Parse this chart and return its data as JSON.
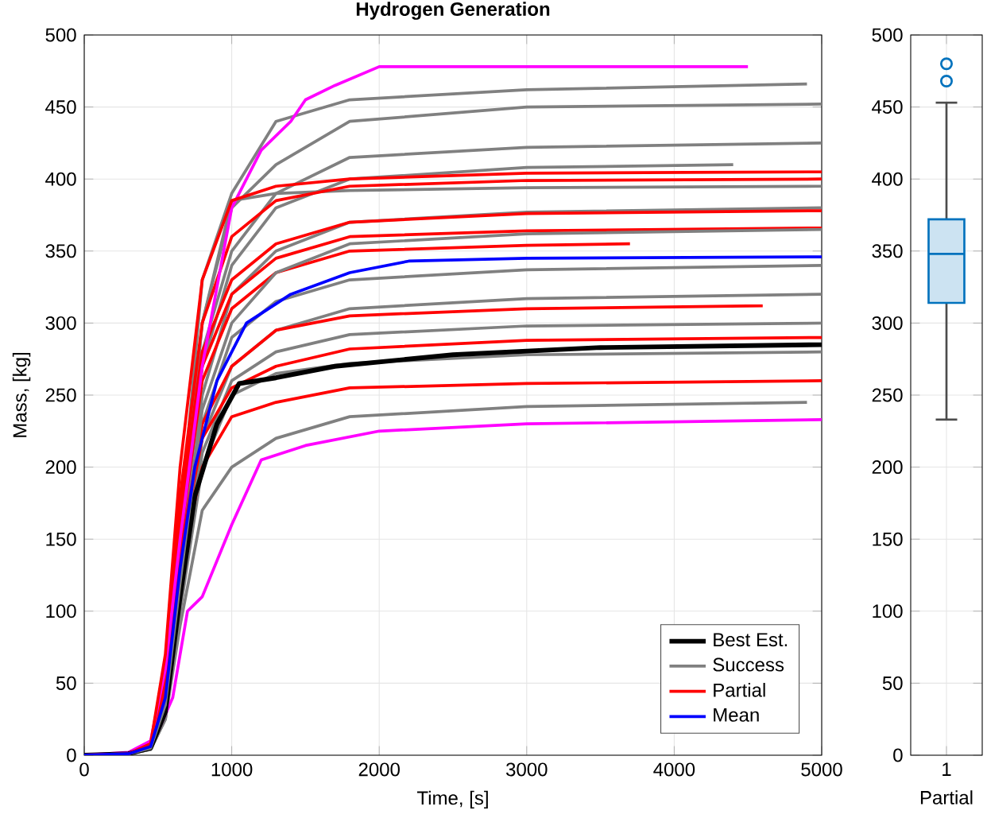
{
  "chart_data": [
    {
      "type": "line",
      "title": "**Hydrogen Generation**",
      "xlabel": "Time, [s]",
      "ylabel": "Mass, [kg]",
      "xlim": [
        0,
        5000
      ],
      "ylim": [
        0,
        500
      ],
      "xticks": [
        0,
        1000,
        2000,
        3000,
        4000,
        5000
      ],
      "yticks": [
        0,
        50,
        100,
        150,
        200,
        250,
        300,
        350,
        400,
        450,
        500
      ],
      "grid": true,
      "legend": "bottom right",
      "marker": "none",
      "line_style": "solid",
      "series": [
        {
          "name": "Best Est.",
          "color": "#000000",
          "x": [
            0,
            300,
            450,
            550,
            650,
            750,
            900,
            1050,
            1300,
            1700,
            2500,
            3500,
            5000
          ],
          "values": [
            0,
            1,
            5,
            30,
            110,
            180,
            230,
            258,
            262,
            270,
            278,
            283,
            285
          ]
        },
        {
          "name": "Success",
          "color": "#808080",
          "x": [
            0,
            300,
            450,
            550,
            650,
            800,
            1000,
            1300,
            1800,
            3000,
            5000
          ],
          "values": [
            0,
            1,
            5,
            35,
            120,
            240,
            300,
            335,
            355,
            362,
            365
          ]
        },
        {
          "name": "Partial",
          "color": "#ff0000",
          "x": [
            0,
            300,
            450,
            550,
            650,
            800,
            1000,
            1300,
            1800,
            3000,
            5000
          ],
          "values": [
            0,
            1,
            8,
            70,
            200,
            330,
            385,
            395,
            400,
            404,
            405
          ]
        },
        {
          "name": "Mean",
          "color": "#0000ff",
          "x": [
            0,
            300,
            450,
            550,
            650,
            750,
            900,
            1100,
            1400,
            1800,
            2200,
            3000,
            5000
          ],
          "values": [
            0,
            1,
            6,
            40,
            130,
            200,
            260,
            300,
            320,
            335,
            343,
            345,
            346
          ]
        },
        {
          "color": "#808080",
          "x": [
            0,
            300,
            450,
            550,
            650,
            800,
            1000,
            1300,
            1800,
            3000,
            4900
          ],
          "values": [
            0,
            1,
            6,
            50,
            160,
            330,
            390,
            440,
            455,
            462,
            466
          ]
        },
        {
          "color": "#808080",
          "x": [
            0,
            300,
            450,
            550,
            650,
            800,
            1000,
            1300,
            1800,
            3000,
            5000
          ],
          "values": [
            0,
            1,
            6,
            45,
            150,
            300,
            380,
            410,
            440,
            450,
            452
          ]
        },
        {
          "color": "#808080",
          "x": [
            0,
            300,
            450,
            550,
            650,
            800,
            1000,
            1300,
            1800,
            3000,
            5000
          ],
          "values": [
            0,
            1,
            5,
            40,
            140,
            280,
            350,
            390,
            415,
            422,
            425
          ]
        },
        {
          "color": "#808080",
          "x": [
            0,
            300,
            450,
            550,
            650,
            800,
            1000,
            1300,
            1800,
            3000,
            4400
          ],
          "values": [
            0,
            1,
            5,
            40,
            130,
            270,
            340,
            380,
            400,
            408,
            410
          ]
        },
        {
          "color": "#808080",
          "x": [
            0,
            300,
            450,
            550,
            650,
            800,
            1000,
            1300,
            1800,
            3000,
            5000
          ],
          "values": [
            0,
            1,
            5,
            45,
            150,
            300,
            385,
            390,
            392,
            394,
            395
          ]
        },
        {
          "color": "#808080",
          "x": [
            0,
            300,
            450,
            550,
            650,
            800,
            1000,
            1300,
            1800,
            3000,
            5000
          ],
          "values": [
            0,
            1,
            5,
            35,
            120,
            250,
            320,
            350,
            370,
            377,
            380
          ]
        },
        {
          "color": "#808080",
          "x": [
            0,
            300,
            450,
            550,
            650,
            800,
            1000,
            1300,
            1800,
            3000,
            5000
          ],
          "values": [
            0,
            1,
            5,
            30,
            110,
            230,
            290,
            315,
            330,
            337,
            340
          ]
        },
        {
          "color": "#808080",
          "x": [
            0,
            300,
            450,
            550,
            650,
            800,
            1000,
            1300,
            1800,
            3000,
            5000
          ],
          "values": [
            0,
            1,
            5,
            30,
            110,
            220,
            270,
            295,
            310,
            317,
            320
          ]
        },
        {
          "color": "#808080",
          "x": [
            0,
            300,
            450,
            550,
            650,
            800,
            1000,
            1300,
            1800,
            3000,
            5000
          ],
          "values": [
            0,
            1,
            4,
            30,
            100,
            210,
            260,
            280,
            292,
            298,
            300
          ]
        },
        {
          "color": "#808080",
          "x": [
            0,
            300,
            450,
            550,
            650,
            800,
            1000,
            1300,
            1800,
            3000,
            5000
          ],
          "values": [
            0,
            1,
            4,
            25,
            100,
            200,
            250,
            265,
            272,
            278,
            280
          ]
        },
        {
          "color": "#808080",
          "x": [
            0,
            300,
            450,
            550,
            650,
            800,
            1000,
            1300,
            1800,
            3000,
            4900
          ],
          "values": [
            0,
            1,
            4,
            25,
            90,
            170,
            200,
            220,
            235,
            242,
            245
          ]
        },
        {
          "color": "#ff0000",
          "x": [
            0,
            300,
            450,
            550,
            650,
            800,
            1000,
            1300,
            1800,
            3000,
            5000
          ],
          "values": [
            0,
            1,
            8,
            60,
            180,
            300,
            360,
            385,
            395,
            399,
            400
          ]
        },
        {
          "color": "#ff0000",
          "x": [
            0,
            300,
            450,
            550,
            650,
            800,
            1000,
            1300,
            1800,
            3000,
            5000
          ],
          "values": [
            0,
            1,
            7,
            55,
            170,
            280,
            330,
            355,
            370,
            376,
            378
          ]
        },
        {
          "color": "#ff0000",
          "x": [
            0,
            300,
            450,
            550,
            650,
            800,
            1000,
            1300,
            1800,
            3000,
            5000
          ],
          "values": [
            0,
            1,
            7,
            55,
            160,
            270,
            320,
            345,
            360,
            364,
            366
          ]
        },
        {
          "color": "#ff0000",
          "x": [
            0,
            300,
            450,
            550,
            650,
            800,
            1000,
            1300,
            1800,
            3000,
            3700
          ],
          "values": [
            0,
            1,
            7,
            50,
            150,
            260,
            310,
            335,
            350,
            354,
            355
          ]
        },
        {
          "color": "#ff0000",
          "x": [
            0,
            300,
            450,
            550,
            650,
            800,
            1000,
            1300,
            1800,
            3000,
            4600
          ],
          "values": [
            0,
            1,
            6,
            45,
            140,
            230,
            270,
            295,
            305,
            310,
            312
          ]
        },
        {
          "color": "#ff0000",
          "x": [
            0,
            300,
            450,
            550,
            650,
            800,
            1000,
            1300,
            1800,
            3000,
            5000
          ],
          "values": [
            0,
            1,
            6,
            45,
            140,
            220,
            255,
            270,
            282,
            288,
            290
          ]
        },
        {
          "color": "#ff0000",
          "x": [
            0,
            300,
            450,
            550,
            650,
            800,
            1000,
            1300,
            1800,
            3000,
            5000
          ],
          "values": [
            0,
            1,
            6,
            40,
            130,
            200,
            235,
            245,
            255,
            258,
            260
          ]
        },
        {
          "color": "#ff00ff",
          "x": [
            0,
            300,
            450,
            550,
            650,
            800,
            1000,
            1200,
            1400,
            1500,
            1700,
            2000,
            4500
          ],
          "values": [
            0,
            2,
            10,
            60,
            150,
            270,
            380,
            420,
            440,
            455,
            465,
            478,
            478
          ]
        },
        {
          "color": "#ff00ff",
          "x": [
            0,
            300,
            450,
            600,
            700,
            800,
            1000,
            1200,
            1500,
            2000,
            3000,
            5000
          ],
          "values": [
            0,
            1,
            5,
            40,
            100,
            110,
            160,
            205,
            215,
            225,
            230,
            233
          ]
        }
      ]
    },
    {
      "type": "box",
      "xlabel": "Partial",
      "categories": [
        "1"
      ],
      "ylim": [
        0,
        500
      ],
      "yticks": [
        0,
        50,
        100,
        150,
        200,
        250,
        300,
        350,
        400,
        450,
        500
      ],
      "grid": true,
      "boxes": [
        {
          "low": 233,
          "q1": 314,
          "median": 348,
          "q3": 372,
          "high": 453,
          "outliers": [
            468,
            480
          ]
        }
      ],
      "color": "#0072bd"
    }
  ]
}
